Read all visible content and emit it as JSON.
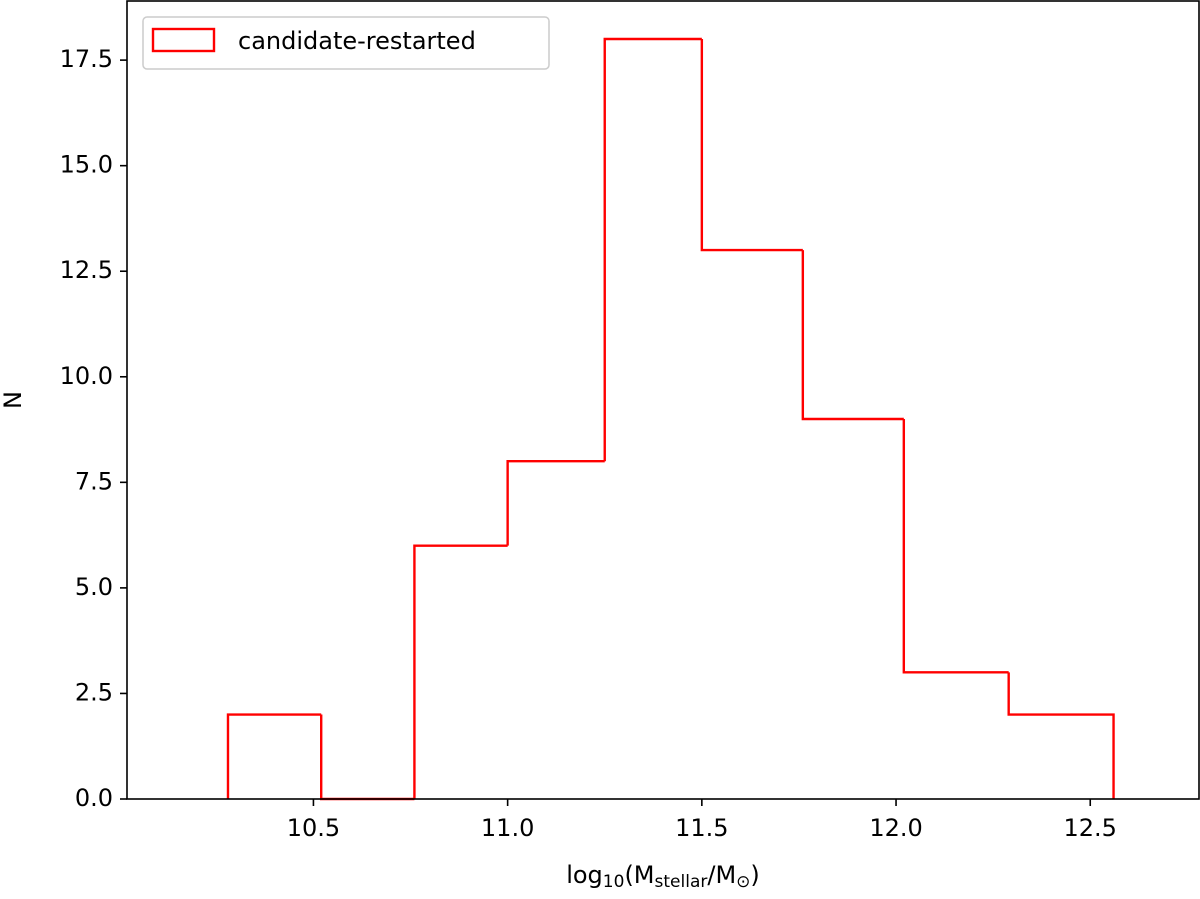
{
  "chart_data": {
    "type": "histogram",
    "bins": [
      10.28,
      10.52,
      10.76,
      11.0,
      11.25,
      11.5,
      11.76,
      12.02,
      12.29,
      12.56
    ],
    "series": [
      {
        "name": "candidate-restarted",
        "color": "#ff0000",
        "values": [
          2,
          0,
          6,
          8,
          18,
          13,
          9,
          3,
          2
        ]
      }
    ],
    "xlim": [
      10.02,
      12.78
    ],
    "ylim": [
      0,
      18.9
    ],
    "xticks": [
      {
        "value": 10.5,
        "label": "10.5"
      },
      {
        "value": 11.0,
        "label": "11.0"
      },
      {
        "value": 11.5,
        "label": "11.5"
      },
      {
        "value": 12.0,
        "label": "12.0"
      },
      {
        "value": 12.5,
        "label": "12.5"
      }
    ],
    "yticks": [
      {
        "value": 0,
        "label": "0.0"
      },
      2.5,
      {
        "value": 5,
        "label": "5.0"
      },
      7.5,
      {
        "value": 10,
        "label": "10.0"
      },
      12.5,
      {
        "value": 15,
        "label": "15.0"
      },
      17.5
    ],
    "x_label": [
      "log",
      "10",
      "(M",
      "stellar",
      "/M",
      "⊙",
      ")"
    ],
    "y_label": "N",
    "legend": "upper left"
  }
}
